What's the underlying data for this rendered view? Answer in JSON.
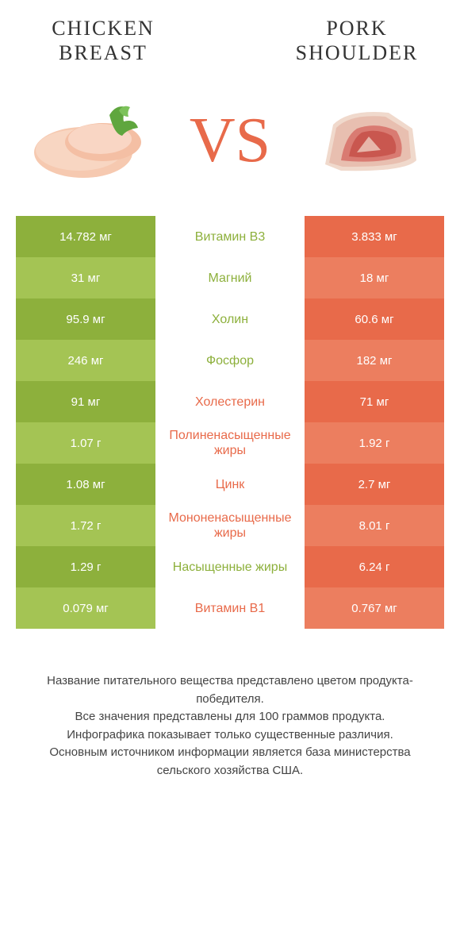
{
  "colors": {
    "left_odd": "#8db03c",
    "left_even": "#a4c454",
    "right_odd": "#e86a4a",
    "right_even": "#ec7e5f",
    "vs": "#e86a4a",
    "bg": "#ffffff",
    "title_text": "#333333",
    "footer_text": "#444444"
  },
  "header": {
    "left_title": "CHICKEN BREAST",
    "right_title": "PORK SHOULDER",
    "vs_label": "VS"
  },
  "typography": {
    "title_fontsize": 26,
    "vs_fontsize": 80,
    "cell_fontsize": 15,
    "nutrient_fontsize": 16,
    "footer_fontsize": 15
  },
  "table": {
    "rows": [
      {
        "left": "14.782 мг",
        "nutrient": "Витамин B3",
        "right": "3.833 мг",
        "winner": "left"
      },
      {
        "left": "31 мг",
        "nutrient": "Магний",
        "right": "18 мг",
        "winner": "left"
      },
      {
        "left": "95.9 мг",
        "nutrient": "Холин",
        "right": "60.6 мг",
        "winner": "left"
      },
      {
        "left": "246 мг",
        "nutrient": "Фосфор",
        "right": "182 мг",
        "winner": "left"
      },
      {
        "left": "91 мг",
        "nutrient": "Холестерин",
        "right": "71 мг",
        "winner": "right"
      },
      {
        "left": "1.07 г",
        "nutrient": "Полиненасыщенные жиры",
        "right": "1.92 г",
        "winner": "right"
      },
      {
        "left": "1.08 мг",
        "nutrient": "Цинк",
        "right": "2.7 мг",
        "winner": "right"
      },
      {
        "left": "1.72 г",
        "nutrient": "Мононенасыщенные жиры",
        "right": "8.01 г",
        "winner": "right"
      },
      {
        "left": "1.29 г",
        "nutrient": "Насыщенные жиры",
        "right": "6.24 г",
        "winner": "left"
      },
      {
        "left": "0.079 мг",
        "nutrient": "Витамин B1",
        "right": "0.767 мг",
        "winner": "right"
      }
    ]
  },
  "footer": {
    "line1": "Название питательного вещества представлено цветом продукта-победителя.",
    "line2": "Все значения представлены для 100 граммов продукта.",
    "line3": "Инфографика показывает только существенные различия.",
    "line4": "Основным источником информации является база министерства сельского хозяйства США."
  }
}
